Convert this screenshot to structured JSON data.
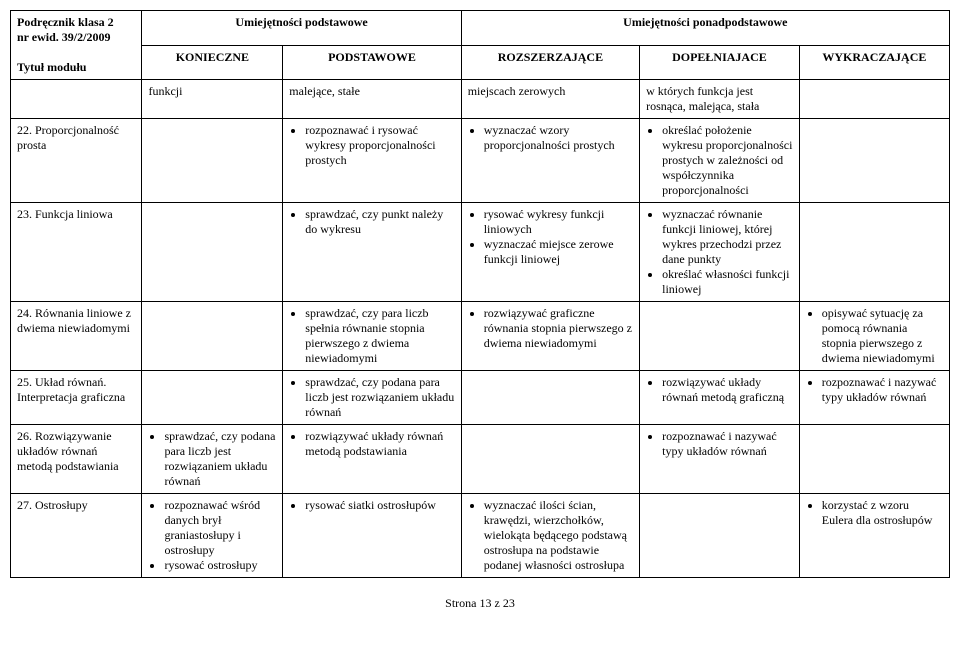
{
  "header": {
    "left_line1": "Podręcznik klasa 2",
    "left_line2": "nr ewid. 39/2/2009",
    "left_line3": "Tytuł modułu",
    "mid_left": "Umiejętności podstawowe",
    "mid_right": "Umiejętności ponadpodstawowe",
    "sub1": "KONIECZNE",
    "sub2": "PODSTAWOWE",
    "sub3": "ROZSZERZAJĄCE",
    "sub4": "DOPEŁNIAJACE",
    "sub5": "WYKRACZAJĄCE"
  },
  "rows": {
    "r0": {
      "b": "funkcji",
      "c": "malejące, stałe",
      "d": "miejscach zerowych",
      "e": "w których funkcja jest rosnąca, malejąca, stała"
    },
    "r1": {
      "a": "22. Proporcjonalność prosta",
      "c1": "rozpoznawać i rysować wykresy proporcjonalności prostych",
      "d1": "wyznaczać wzory proporcjonalności prostych",
      "e1": "określać położenie wykresu proporcjonalności prostych w zależności od współczynnika proporcjonalności"
    },
    "r2": {
      "a": "23. Funkcja liniowa",
      "c1": "sprawdzać, czy punkt należy do wykresu",
      "d1": "rysować wykresy funkcji liniowych",
      "d2": "wyznaczać miejsce zerowe funkcji liniowej",
      "e1": "wyznaczać równanie funkcji liniowej, której wykres przechodzi przez dane punkty",
      "e2": "określać własności funkcji liniowej"
    },
    "r3": {
      "a": "24. Równania liniowe z dwiema niewiadomymi",
      "c1": "sprawdzać, czy para liczb spełnia równanie stopnia pierwszego z dwiema niewiadomymi",
      "d1": "rozwiązywać graficzne równania stopnia pierwszego z dwiema niewiadomymi",
      "f1": "opisywać sytuację za pomocą równania stopnia pierwszego z dwiema niewiadomymi"
    },
    "r4": {
      "a": "25. Układ równań. Interpretacja graficzna",
      "c1": "sprawdzać, czy podana para liczb jest rozwiązaniem układu równań",
      "e1": "rozwiązywać układy równań metodą graficzną",
      "f1": "rozpoznawać i nazywać typy układów równań"
    },
    "r5": {
      "a": "26. Rozwiązywanie układów równań metodą podstawiania",
      "b1": "sprawdzać, czy podana para liczb jest rozwiązaniem układu równań",
      "c1": "rozwiązywać układy równań metodą podstawiania",
      "e1": "rozpoznawać i nazywać typy układów równań"
    },
    "r6": {
      "a": "27. Ostrosłupy",
      "b1": "rozpoznawać wśród danych brył graniastosłupy i ostrosłupy",
      "b2": "rysować ostrosłupy",
      "c1": "rysować siatki ostrosłupów",
      "d1": "wyznaczać ilości ścian, krawędzi, wierzchołków, wielokąta będącego podstawą ostrosłupa na podstawie podanej własności ostrosłupa",
      "f1": "korzystać z wzoru Eulera dla ostrosłupów"
    }
  },
  "footer": "Strona 13 z 23"
}
